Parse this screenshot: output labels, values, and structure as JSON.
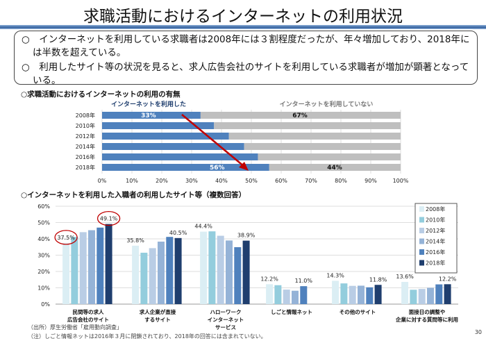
{
  "title": "求職活動におけるインターネットの利用状況",
  "summary": [
    "○　インターネットを利用している求職者は2008年には３割程度だったが、年々増加しており、2018年には半数を超えている。",
    "○　利用したサイト等の状況を見ると、求人広告会社のサイトを利用している求職者が増加が顕著となっている。"
  ],
  "section1": "○求職活動におけるインターネットの利用の有無",
  "section2": "○インターネットを利用した入職者の利用したサイト等（複数回答）",
  "notes": [
    "（出所）厚生労働省「雇用動向調査」",
    "（注）しごと情報ネットは2016年３月に閉鎖されており、2018年の回答には含まれていない。"
  ],
  "page_number": "30",
  "chart_data": [
    {
      "type": "bar",
      "orientation": "horizontal-stacked",
      "categories": [
        "2008年",
        "2010年",
        "2012年",
        "2014年",
        "2016年",
        "2018年"
      ],
      "series": [
        {
          "name": "インターネットを利用した",
          "color": "#4f81bd",
          "values": [
            33,
            37.5,
            42.5,
            47.6,
            52.2,
            56
          ]
        },
        {
          "name": "インターネットを利用していない",
          "color": "#bfbfbf",
          "values": [
            67,
            62.5,
            57.5,
            52.4,
            47.8,
            44
          ]
        }
      ],
      "data_labels": [
        {
          "year": "2008年",
          "used": "33%",
          "not_used": "67%"
        },
        {
          "year": "2018年",
          "used": "56%",
          "not_used": "44%"
        }
      ],
      "xticks": [
        "0%",
        "10%",
        "20%",
        "30%",
        "40%",
        "50%",
        "60%",
        "70%",
        "80%",
        "90%",
        "100%"
      ],
      "xlim": [
        0,
        100
      ],
      "grid": true,
      "legend": "top",
      "annotation": "red arrow from 2008 to 2018"
    },
    {
      "type": "bar",
      "categories": [
        [
          "民間等の求人",
          "広告会社のサイト"
        ],
        [
          "求人企業が直接",
          "するサイト"
        ],
        [
          "ハローワーク",
          "インターネット",
          "サービス"
        ],
        [
          "しごと情報ネット"
        ],
        [
          "その他のサイト"
        ],
        [
          "面接日の調整や",
          "企業に対する質問等に利用"
        ]
      ],
      "series": [
        {
          "name": "2008年",
          "color": "#dbeef4",
          "values": [
            37.5,
            35.8,
            44.4,
            12.2,
            14.3,
            13.6
          ]
        },
        {
          "name": "2010年",
          "color": "#93cddd",
          "values": [
            41.2,
            31.5,
            44.6,
            11.6,
            12.7,
            8.8
          ]
        },
        {
          "name": "2012年",
          "color": "#b9cde5",
          "values": [
            44.1,
            34.3,
            41.9,
            8.9,
            11.2,
            9.3
          ]
        },
        {
          "name": "2014年",
          "color": "#95b3d7",
          "values": [
            45.3,
            38.3,
            39.0,
            8.2,
            11.3,
            10.0
          ]
        },
        {
          "name": "2016年",
          "color": "#4f81bd",
          "values": [
            46.9,
            41.2,
            34.9,
            11.0,
            10.3,
            12.1
          ]
        },
        {
          "name": "2018年",
          "color": "#1f3e6e",
          "values": [
            49.1,
            40.5,
            38.9,
            null,
            11.8,
            12.2
          ]
        }
      ],
      "data_labels": [
        [
          "37.5%",
          "49.1%"
        ],
        [
          "35.8%",
          "40.5%"
        ],
        [
          "44.4%",
          "38.9%"
        ],
        [
          "12.2%",
          "11.0%"
        ],
        [
          "14.3%",
          "11.8%"
        ],
        [
          "13.6%",
          "12.2%"
        ]
      ],
      "highlighted": [
        "37.5%",
        "49.1%"
      ],
      "yticks": [
        "0%",
        "10%",
        "20%",
        "30%",
        "40%",
        "50%",
        "60%"
      ],
      "ylim": [
        0,
        60
      ],
      "grid": true,
      "legend": "right"
    }
  ]
}
